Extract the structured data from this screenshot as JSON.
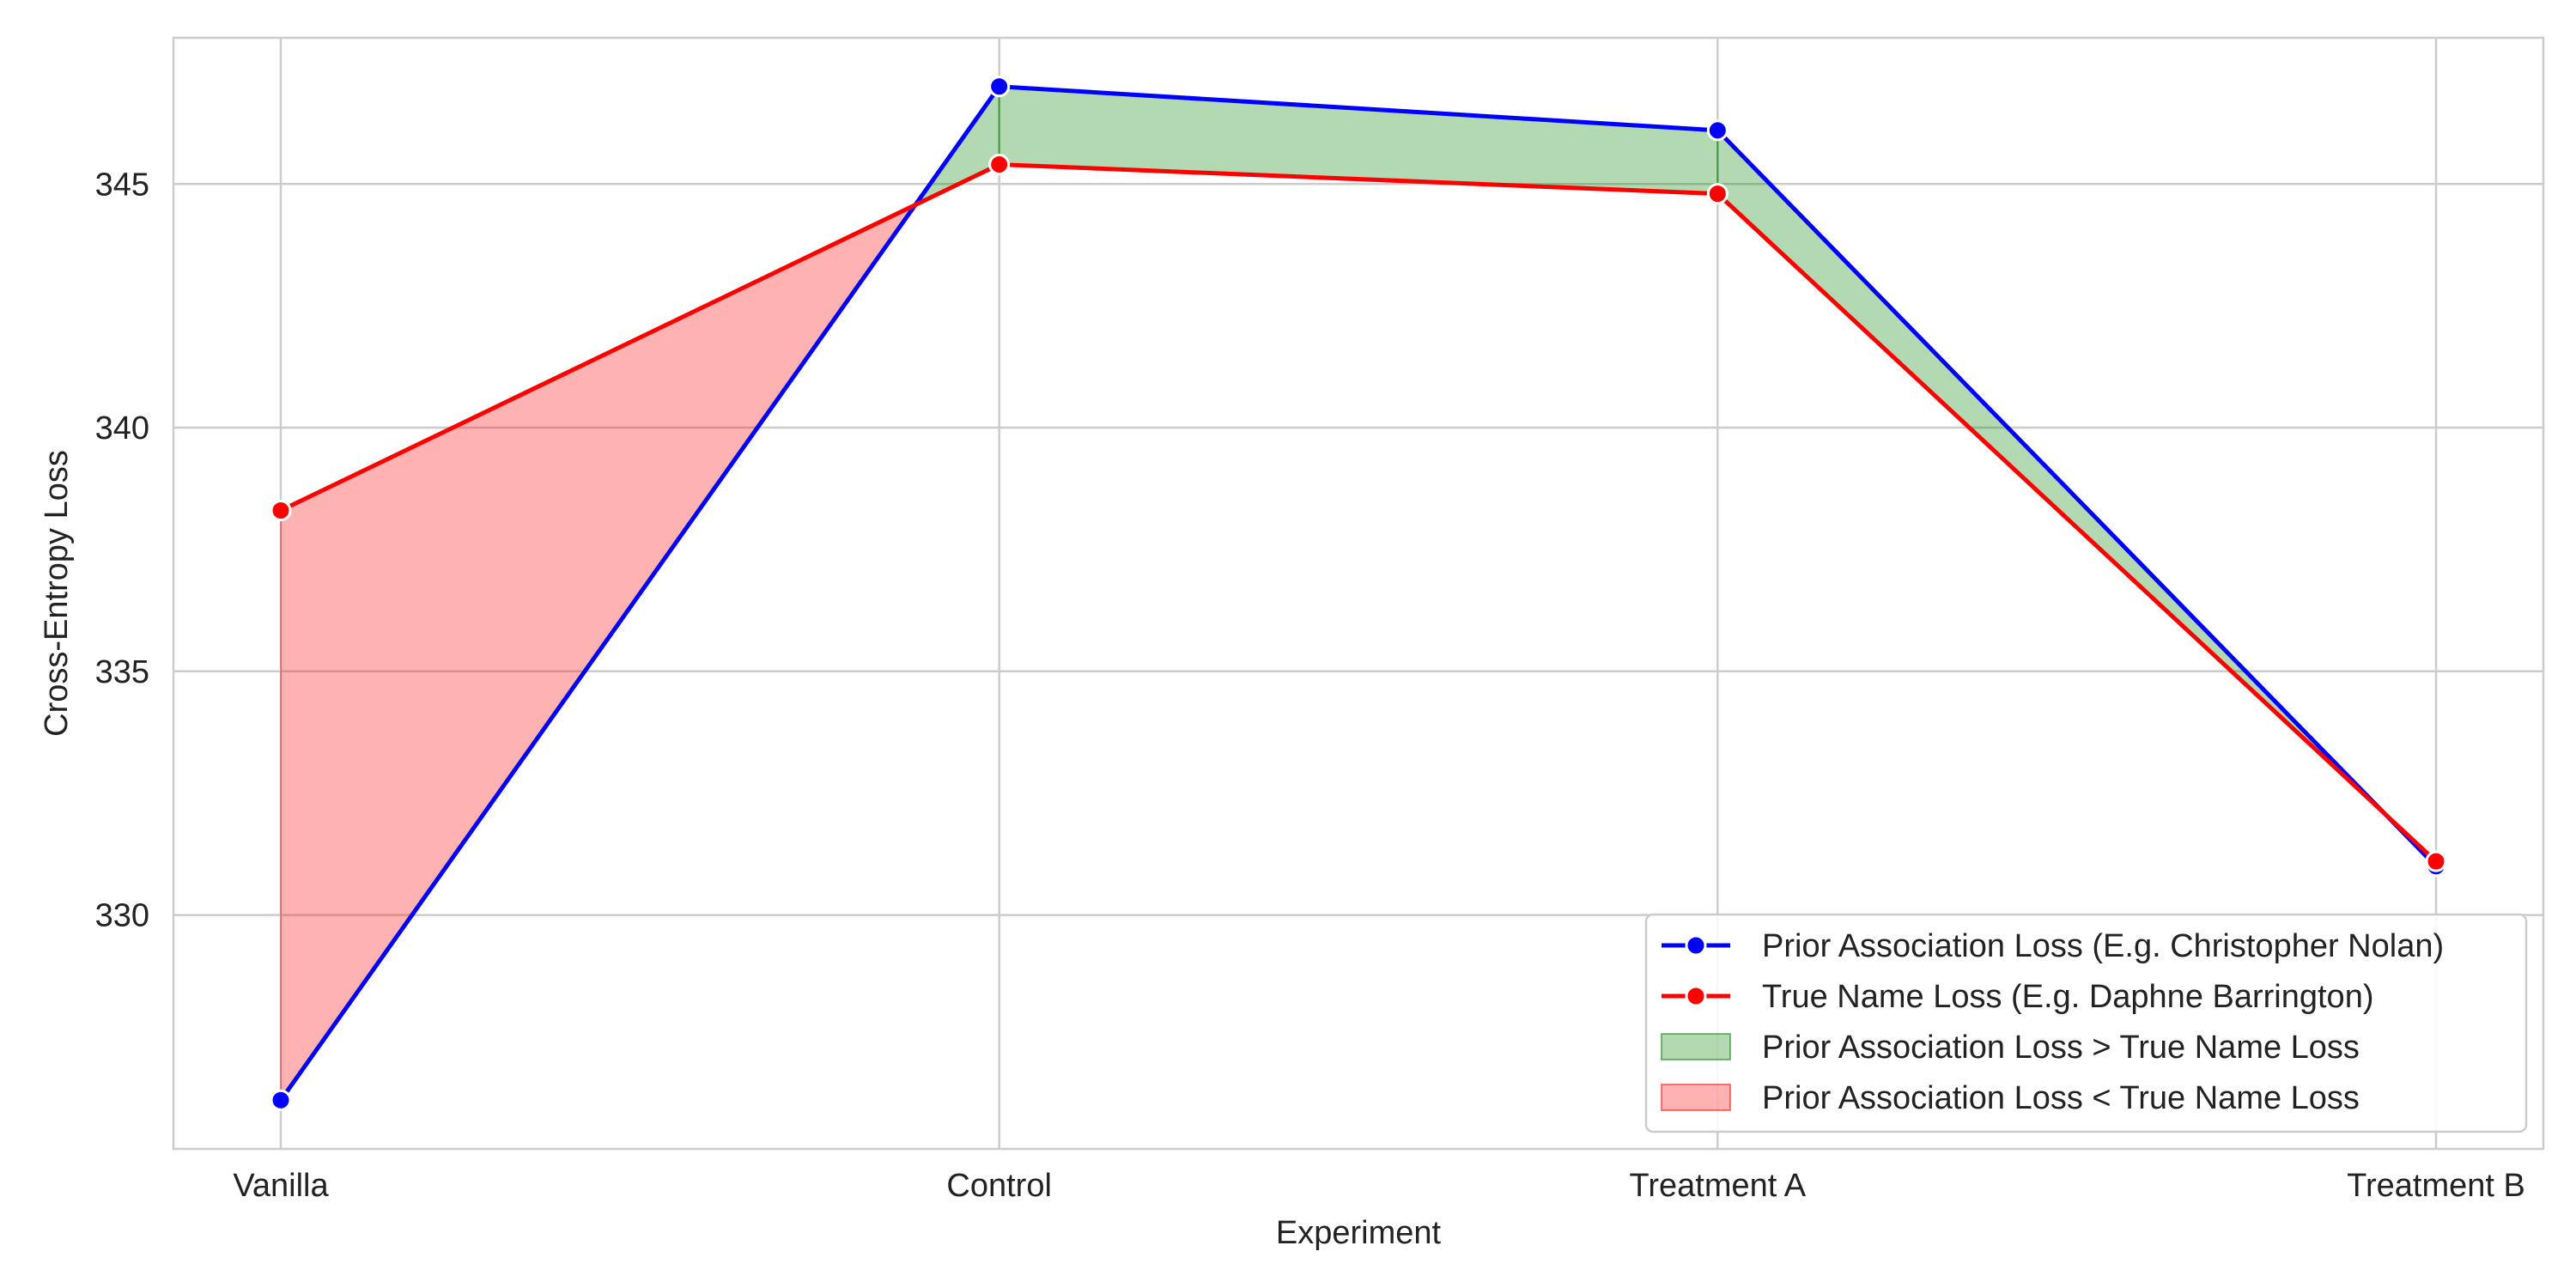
{
  "chart_data": {
    "type": "line",
    "categories": [
      "Vanilla",
      "Control",
      "Treatment A",
      "Treatment B"
    ],
    "series": [
      {
        "name": "Prior Association Loss (E.g. Christopher Nolan)",
        "values": [
          326.2,
          347.0,
          346.1,
          331.0
        ],
        "color": "#0000ff"
      },
      {
        "name": "True Name Loss (E.g. Daphne Barrington)",
        "values": [
          338.3,
          345.4,
          344.8,
          331.1
        ],
        "color": "#ff0000"
      }
    ],
    "fills": [
      {
        "label": "Prior Association Loss > True Name Loss",
        "color": "#008000",
        "opacity": 0.3,
        "where": "prior_greater"
      },
      {
        "label": "Prior Association Loss < True Name Loss",
        "color": "#ff0000",
        "opacity": 0.3,
        "where": "prior_less"
      }
    ],
    "xlabel": "Experiment",
    "ylabel": "Cross-Entropy Loss",
    "ylim": [
      325.2,
      348.0
    ],
    "yticks": [
      330,
      335,
      340,
      345
    ],
    "grid": true,
    "legend_position": "lower right"
  }
}
